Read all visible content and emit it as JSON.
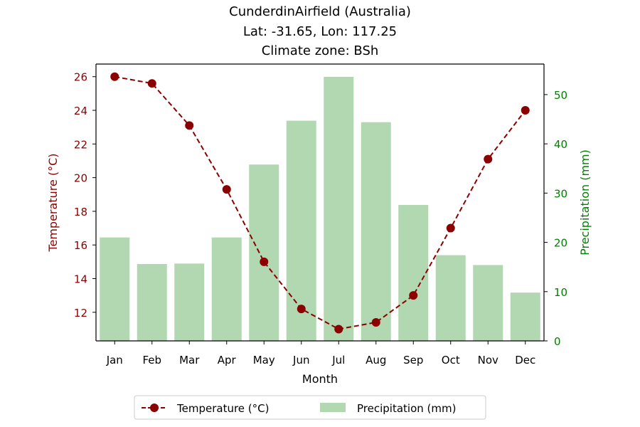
{
  "chart_data": {
    "type": "bar",
    "title": [
      "CunderdinAirfield (Australia)",
      "Lat: -31.65, Lon: 117.25",
      "Climate zone: BSh"
    ],
    "xlabel": "Month",
    "categories": [
      "Jan",
      "Feb",
      "Mar",
      "Apr",
      "May",
      "Jun",
      "Jul",
      "Aug",
      "Sep",
      "Oct",
      "Nov",
      "Dec"
    ],
    "y_left": {
      "label": "Temperature (°C)",
      "ticks": [
        12,
        14,
        16,
        18,
        20,
        22,
        24,
        26
      ],
      "range": [
        10.3,
        26.75
      ],
      "color": "#8b0000"
    },
    "y_right": {
      "label": "Precipitation (mm)",
      "ticks": [
        0,
        10,
        20,
        30,
        40,
        50
      ],
      "range": [
        0,
        56.2
      ],
      "color": "#008000"
    },
    "series": [
      {
        "name": "Temperature (°C)",
        "type": "line",
        "axis": "left",
        "color": "#8b0000",
        "style": "dashed",
        "marker": "circle",
        "values": [
          26.0,
          25.6,
          23.1,
          19.3,
          15.0,
          12.2,
          11.0,
          11.4,
          13.0,
          17.0,
          21.1,
          24.0
        ]
      },
      {
        "name": "Precipitation (mm)",
        "type": "bar",
        "axis": "right",
        "color": "#b2d8b2",
        "values": [
          21.0,
          15.6,
          15.7,
          21.0,
          35.8,
          44.7,
          53.6,
          44.4,
          27.6,
          17.4,
          15.4,
          9.8
        ]
      }
    ],
    "legend": {
      "placement": "bottom-center",
      "entries": [
        "Temperature (°C)",
        "Precipitation (mm)"
      ]
    },
    "grid": false
  }
}
